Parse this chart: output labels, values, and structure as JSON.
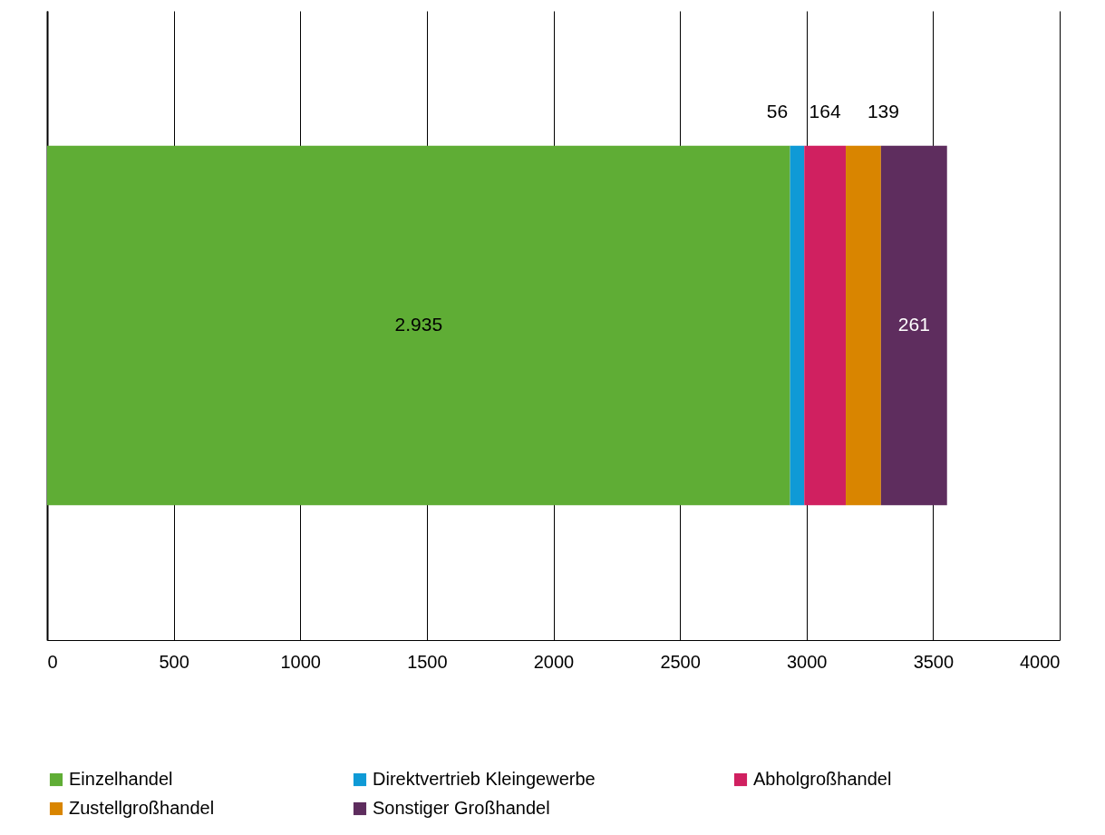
{
  "chart_data": {
    "type": "bar",
    "orientation": "horizontal",
    "stacked": true,
    "categories": [
      null
    ],
    "series": [
      {
        "name": "Einzelhandel",
        "color": "#5fad35",
        "values": [
          2935
        ]
      },
      {
        "name": "Direktvertrieb Kleingewerbe",
        "color": "#0f9ad6",
        "values": [
          56
        ]
      },
      {
        "name": "Abholgroßhandel",
        "color": "#d02060",
        "values": [
          164
        ]
      },
      {
        "name": "Zustellgroßhandel",
        "color": "#d98500",
        "values": [
          139
        ]
      },
      {
        "name": "Sonstiger Großhandel",
        "color": "#5e2d5e",
        "values": [
          261
        ]
      }
    ],
    "value_labels": [
      [
        "2.935"
      ],
      [
        "56"
      ],
      [
        "164"
      ],
      [
        "139"
      ],
      [
        "261"
      ]
    ],
    "xlim": [
      0,
      4000
    ],
    "xticks": [
      0,
      500,
      1000,
      1500,
      2000,
      2500,
      3000,
      3500,
      4000
    ],
    "grid": "x",
    "legend": "bottom"
  }
}
